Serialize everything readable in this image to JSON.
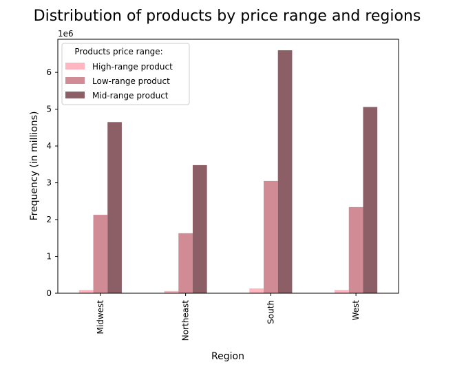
{
  "chart_data": {
    "type": "bar",
    "title": "Distribution of products by price range and regions",
    "xlabel": "Region",
    "ylabel": "Frequency (in millions)",
    "y_offset_label": "1e6",
    "categories": [
      "Midwest",
      "Northeast",
      "South",
      "West"
    ],
    "yticks": [
      "0",
      "1",
      "2",
      "3",
      "4",
      "5",
      "6"
    ],
    "ylim": [
      0,
      6900000
    ],
    "legend": {
      "title": "Products price range:",
      "placement": "top-left"
    },
    "series": [
      {
        "name": "High-range product",
        "color": "#ffb6c1",
        "values": [
          90000,
          60000,
          130000,
          90000
        ]
      },
      {
        "name": "Low-range product",
        "color": "#d18b94",
        "values": [
          2130000,
          1630000,
          3050000,
          2340000
        ]
      },
      {
        "name": "Mid-range product",
        "color": "#8c5e66",
        "values": [
          4650000,
          3480000,
          6600000,
          5060000
        ]
      }
    ]
  }
}
